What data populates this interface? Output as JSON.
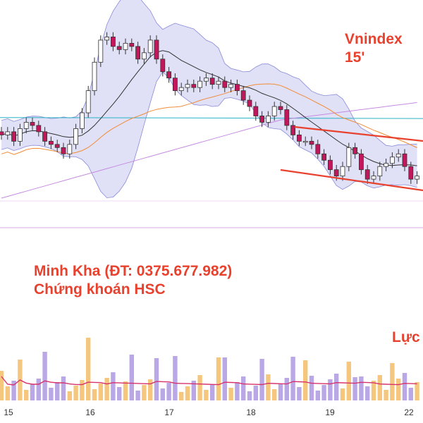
{
  "annotations": {
    "title_line1": "Vnindex",
    "title_line2": "15'",
    "author_line1": "Minh Kha (ĐT: 0375.677.982)",
    "author_line2": "Chứng khoán HSC",
    "volume_label": "Lực"
  },
  "colors": {
    "candle_up": "#ffffff",
    "candle_down": "#c2185b",
    "candle_wick": "#333333",
    "bollinger_fill": "#d6d6f3",
    "bollinger_edge": "#8a8ad8",
    "ma_short": "#333333",
    "ma_mid": "#f28c38",
    "ma_long": "#c58be0",
    "ma_flat": "#2bb3c6",
    "channel": "#e8412e",
    "volume_up": "#f5c77e",
    "volume_down": "#b9a7e6",
    "volume_ma": "#d6336c",
    "reference_line": "#d9a8e6"
  },
  "chart_data": {
    "type": "candlestick",
    "x_ticks": [
      "15",
      "16",
      "17",
      "18",
      "19",
      "22"
    ],
    "price_series_close_by_bar": [
      1232,
      1233,
      1230,
      1234,
      1236,
      1235,
      1233,
      1230,
      1229,
      1228,
      1226,
      1229,
      1234,
      1239,
      1246,
      1255,
      1262,
      1263,
      1260,
      1259,
      1261,
      1260,
      1256,
      1258,
      1262,
      1256,
      1252,
      1250,
      1246,
      1247,
      1248,
      1247,
      1249,
      1250,
      1248,
      1249,
      1247,
      1248,
      1246,
      1243,
      1241,
      1238,
      1236,
      1238,
      1241,
      1240,
      1235,
      1232,
      1230,
      1230,
      1229,
      1226,
      1224,
      1221,
      1219,
      1222,
      1228,
      1226,
      1221,
      1218,
      1219,
      1222,
      1223,
      1225,
      1226,
      1222,
      1218,
      1219
    ],
    "channel_lines": "descending parallel channel",
    "indicators": [
      "Bollinger Bands",
      "moving averages",
      "volume",
      "volume MA"
    ]
  }
}
